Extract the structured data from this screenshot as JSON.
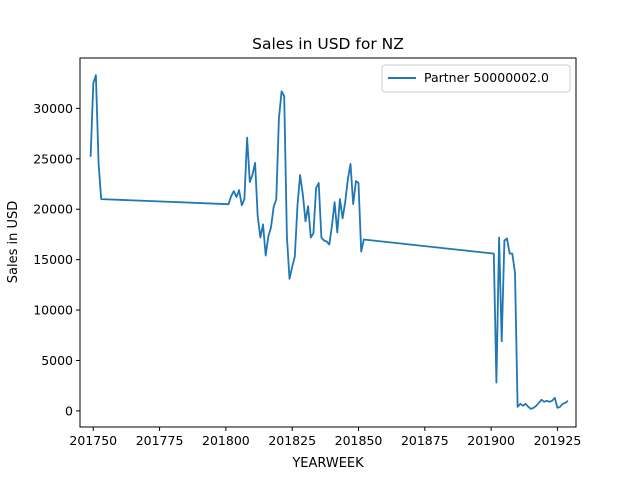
{
  "chart_data": {
    "type": "line",
    "title": "Sales in USD for NZ",
    "xlabel": "YEARWEEK",
    "ylabel": "Sales in USD",
    "xlim": [
      201745,
      201932
    ],
    "ylim": [
      -1600,
      35000
    ],
    "xticks": [
      201750,
      201775,
      201800,
      201825,
      201850,
      201875,
      201900,
      201925
    ],
    "yticks": [
      0,
      5000,
      10000,
      15000,
      20000,
      25000,
      30000
    ],
    "grid": false,
    "legend_position": "top-right",
    "line_color": "#1f77b4",
    "series": [
      {
        "name": "Partner 50000002.0",
        "x": [
          201749,
          201750,
          201751,
          201752,
          201753,
          201801,
          201802,
          201803,
          201804,
          201805,
          201806,
          201807,
          201808,
          201809,
          201810,
          201811,
          201812,
          201813,
          201814,
          201815,
          201816,
          201817,
          201818,
          201819,
          201820,
          201821,
          201822,
          201823,
          201824,
          201825,
          201826,
          201827,
          201828,
          201829,
          201830,
          201831,
          201832,
          201833,
          201834,
          201835,
          201836,
          201837,
          201838,
          201839,
          201840,
          201841,
          201842,
          201843,
          201844,
          201845,
          201846,
          201847,
          201848,
          201849,
          201850,
          201851,
          201852,
          201901,
          201902,
          201903,
          201904,
          201905,
          201906,
          201907,
          201908,
          201909,
          201910,
          201911,
          201912,
          201913,
          201914,
          201915,
          201916,
          201917,
          201918,
          201919,
          201920,
          201921,
          201922,
          201923,
          201924,
          201925,
          201926,
          201927,
          201928,
          201929
        ],
        "values": [
          25200,
          32500,
          33300,
          24500,
          21000,
          20500,
          21300,
          21800,
          21200,
          21900,
          20400,
          21000,
          27100,
          22700,
          23400,
          24600,
          19300,
          17200,
          18500,
          15400,
          17300,
          18200,
          20200,
          21000,
          29000,
          31700,
          31200,
          17300,
          13100,
          14300,
          15300,
          20400,
          23400,
          21500,
          18800,
          20300,
          17200,
          17600,
          22100,
          22600,
          17200,
          16900,
          16800,
          16500,
          18400,
          20700,
          17700,
          21000,
          19100,
          20700,
          23000,
          24500,
          20500,
          22800,
          22600,
          15800,
          17000,
          15600,
          2800,
          17200,
          6900,
          16900,
          17100,
          15600,
          15600,
          13700,
          400,
          700,
          500,
          700,
          400,
          200,
          300,
          500,
          800,
          1100,
          900,
          1000,
          900,
          1000,
          1300,
          300,
          400,
          700,
          800,
          1000
        ]
      }
    ]
  }
}
